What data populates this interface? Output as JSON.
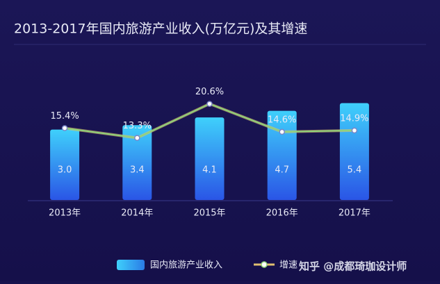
{
  "chart_data": {
    "type": "bar-line",
    "title": "2013-2017年国内旅游产业收入(万亿元)及其增速",
    "categories": [
      "2013年",
      "2014年",
      "2015年",
      "2016年",
      "2017年"
    ],
    "series": [
      {
        "name": "国内旅游产业收入",
        "type": "bar",
        "color": "#2fb6f5",
        "values": [
          3.0,
          3.4,
          4.1,
          4.7,
          5.4
        ],
        "value_labels": [
          "3.0",
          "3.4",
          "4.1",
          "4.7",
          "5.4"
        ]
      },
      {
        "name": "增速",
        "type": "line",
        "axis": "y2",
        "color": "#8fd47a",
        "values": [
          15.4,
          13.3,
          20.6,
          14.6,
          14.9
        ],
        "value_labels": [
          "15.4%",
          "13.3%",
          "20.6%",
          "14.6%",
          "14.9%"
        ]
      }
    ],
    "ylim": [
      -3.4,
      7.2
    ],
    "y2lim": [
      0,
      25
    ],
    "watermark": "知乎 @成都琦珈设计师"
  }
}
